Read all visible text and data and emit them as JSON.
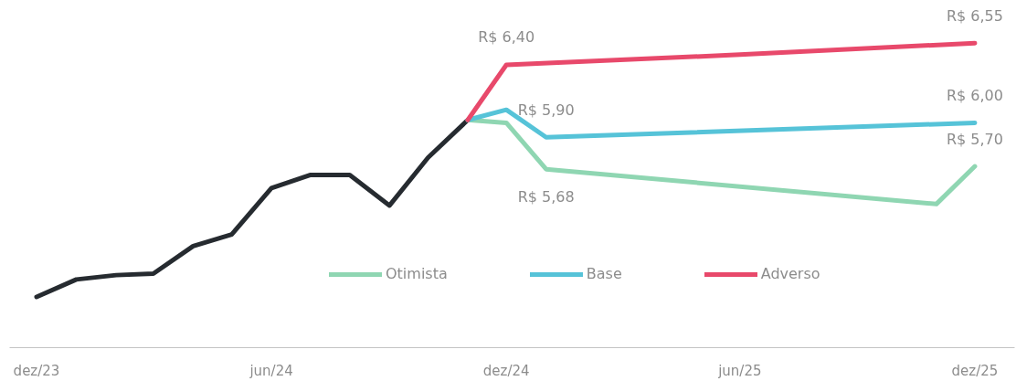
{
  "chart_data": {
    "type": "line",
    "tick_labels": "x",
    "legend": "bottom",
    "xlim": [
      "2023-11-10",
      "2026-01-01"
    ],
    "xticks": [
      {
        "value": "2023-12",
        "label": "dez/23"
      },
      {
        "value": "2024-06",
        "label": "jun/24"
      },
      {
        "value": "2024-12",
        "label": "dez/24"
      },
      {
        "value": "2025-06",
        "label": "jun/25"
      },
      {
        "value": "2025-12",
        "label": "dez/25"
      }
    ],
    "series": [
      {
        "color": "#262b30",
        "x": [
          "2023-12",
          "2024-01",
          "2024-02",
          "2024-03",
          "2024-04",
          "2024-05",
          "2024-06",
          "2024-07",
          "2024-08",
          "2024-09",
          "2024-10",
          "2024-11"
        ],
        "values": [
          4.8,
          4.92,
          4.95,
          4.96,
          5.15,
          5.23,
          5.55,
          5.64,
          5.64,
          5.43,
          5.76,
          6.02
        ]
      },
      {
        "name": "Otimista",
        "color": "#8fd6b2",
        "x": [
          "2024-11",
          "2024-12",
          "2025-01",
          "2025-11",
          "2025-12"
        ],
        "values": [
          6.02,
          6.0,
          5.68,
          5.44,
          5.7
        ],
        "value_labels": [
          null,
          null,
          "R$ 5,68",
          null,
          "R$ 5,70"
        ]
      },
      {
        "name": "Base",
        "color": "#56c3d8",
        "x": [
          "2024-11",
          "2024-12",
          "2025-01",
          "2025-12"
        ],
        "values": [
          6.02,
          6.09,
          5.9,
          6.0
        ],
        "value_labels": [
          null,
          null,
          "R$ 5,90",
          "R$ 6,00"
        ]
      },
      {
        "name": "Adverso",
        "color": "#e8496b",
        "x": [
          "2024-11",
          "2024-12",
          "2025-06",
          "2025-12"
        ],
        "values": [
          6.02,
          6.4,
          6.47,
          6.55
        ],
        "value_labels": [
          null,
          "R$ 6,40",
          null,
          "R$ 6,55"
        ]
      }
    ]
  }
}
